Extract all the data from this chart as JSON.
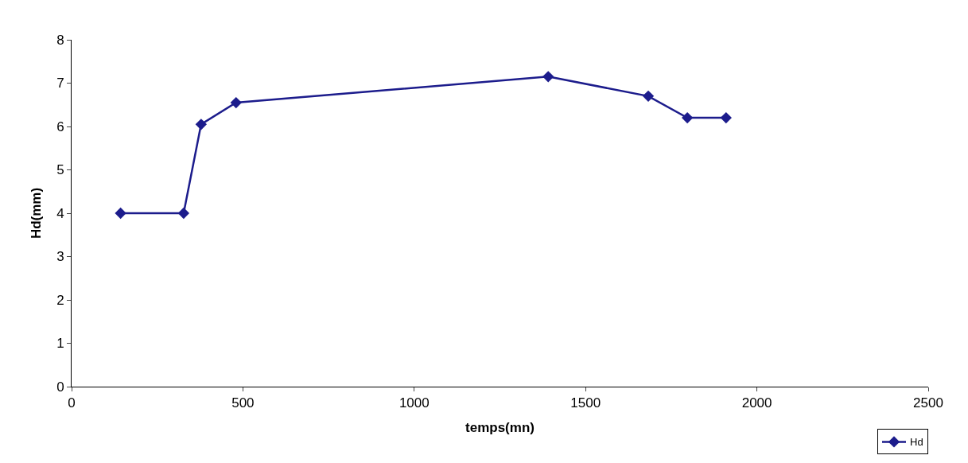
{
  "chart_data": {
    "type": "line",
    "xlabel": "temps(mn)",
    "ylabel": "Hd(mm)",
    "series": [
      {
        "name": "Hd",
        "color": "#1c1c8c",
        "x": [
          143,
          327,
          378,
          480,
          1391,
          1683,
          1797,
          1910
        ],
        "values": [
          4.0,
          4.0,
          6.05,
          6.55,
          7.15,
          6.7,
          6.2,
          6.2
        ]
      }
    ],
    "xlim": [
      0,
      2500
    ],
    "xticks": [
      0,
      500,
      1000,
      1500,
      2000,
      2500
    ],
    "ylim": [
      0,
      8
    ],
    "yticks": [
      0,
      1,
      2,
      3,
      4,
      5,
      6,
      7,
      8
    ],
    "grid": false,
    "legend": "bottom right",
    "marker": "diamond",
    "line_style": "solid"
  }
}
